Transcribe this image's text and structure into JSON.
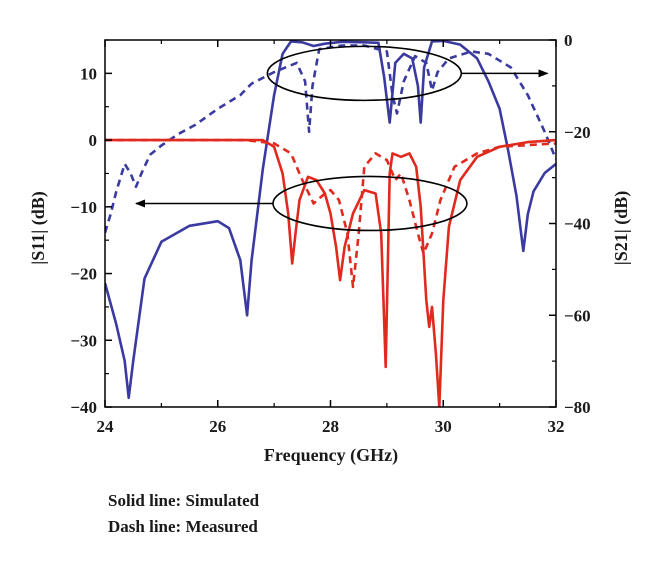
{
  "chart_data": {
    "type": "line",
    "xlabel": "Frequency (GHz)",
    "ylabel_left": "|S11| (dB)",
    "ylabel_right": "|S21| (dB)",
    "xlim": [
      24,
      32
    ],
    "ylim_left": [
      -40,
      15
    ],
    "ylim_right": [
      -80,
      0
    ],
    "x_ticks": [
      "24",
      "26",
      "28",
      "30",
      "32"
    ],
    "y_left_ticks": [
      "10",
      "0",
      "−10",
      "−20",
      "−30",
      "−40"
    ],
    "y_right_ticks": [
      "0",
      "−20",
      "−40",
      "−60",
      "−80"
    ],
    "grid": false,
    "series": [
      {
        "axis": "right",
        "style": "solid",
        "color": "#3a3aa0",
        "points": [
          [
            24,
            -53
          ],
          [
            24.2,
            -62
          ],
          [
            24.35,
            -70
          ],
          [
            24.42,
            -78
          ],
          [
            24.5,
            -70
          ],
          [
            24.7,
            -52
          ],
          [
            25,
            -44
          ],
          [
            25.5,
            -40.5
          ],
          [
            26,
            -39.5
          ],
          [
            26.2,
            -41
          ],
          [
            26.4,
            -48
          ],
          [
            26.52,
            -60
          ],
          [
            26.6,
            -48
          ],
          [
            26.8,
            -28
          ],
          [
            27,
            -12
          ],
          [
            27.15,
            -3
          ],
          [
            27.3,
            -0.3
          ],
          [
            27.5,
            -0.5
          ],
          [
            27.7,
            -1.3
          ],
          [
            27.9,
            -0.8
          ],
          [
            28.2,
            -0.4
          ],
          [
            28.6,
            -0.5
          ],
          [
            28.85,
            -0.6
          ],
          [
            28.95,
            -8
          ],
          [
            29.05,
            -18
          ],
          [
            29.15,
            -5
          ],
          [
            29.3,
            -3
          ],
          [
            29.45,
            -4
          ],
          [
            29.55,
            -10
          ],
          [
            29.6,
            -18
          ],
          [
            29.66,
            -6
          ],
          [
            29.8,
            -0.3
          ],
          [
            30,
            -0.2
          ],
          [
            30.3,
            -1
          ],
          [
            30.6,
            -4
          ],
          [
            30.8,
            -9
          ],
          [
            31,
            -15
          ],
          [
            31.15,
            -24
          ],
          [
            31.3,
            -34
          ],
          [
            31.42,
            -46
          ],
          [
            31.5,
            -38
          ],
          [
            31.6,
            -33
          ],
          [
            31.8,
            -29
          ],
          [
            32,
            -27
          ]
        ]
      },
      {
        "axis": "right",
        "style": "dashed",
        "color": "#3a3aa0",
        "points": [
          [
            24,
            -42
          ],
          [
            24.1,
            -38
          ],
          [
            24.2,
            -33
          ],
          [
            24.35,
            -27
          ],
          [
            24.45,
            -29
          ],
          [
            24.55,
            -32
          ],
          [
            24.65,
            -29
          ],
          [
            24.8,
            -25
          ],
          [
            25,
            -23
          ],
          [
            25.3,
            -20.5
          ],
          [
            25.6,
            -18.5
          ],
          [
            26,
            -15
          ],
          [
            26.4,
            -12
          ],
          [
            26.6,
            -9.5
          ],
          [
            27,
            -7
          ],
          [
            27.4,
            -5
          ],
          [
            27.55,
            -9
          ],
          [
            27.62,
            -20
          ],
          [
            27.68,
            -10
          ],
          [
            27.8,
            -2
          ],
          [
            28.2,
            -1.2
          ],
          [
            28.6,
            -1.2
          ],
          [
            29,
            -2.5
          ],
          [
            29.1,
            -12
          ],
          [
            29.18,
            -16
          ],
          [
            29.3,
            -9
          ],
          [
            29.5,
            -3.5
          ],
          [
            29.7,
            -5
          ],
          [
            29.8,
            -11
          ],
          [
            29.9,
            -7
          ],
          [
            30.1,
            -4
          ],
          [
            30.5,
            -2.5
          ],
          [
            30.8,
            -3
          ],
          [
            31.2,
            -6
          ],
          [
            31.5,
            -12
          ],
          [
            31.8,
            -20
          ],
          [
            32,
            -26
          ]
        ]
      },
      {
        "axis": "left",
        "style": "solid",
        "color": "#e02a1e",
        "points": [
          [
            24,
            0
          ],
          [
            26,
            0
          ],
          [
            26.8,
            0
          ],
          [
            27,
            -1
          ],
          [
            27.15,
            -5
          ],
          [
            27.25,
            -11
          ],
          [
            27.32,
            -18.5
          ],
          [
            27.38,
            -14
          ],
          [
            27.45,
            -9
          ],
          [
            27.6,
            -5.5
          ],
          [
            27.75,
            -6
          ],
          [
            27.9,
            -8
          ],
          [
            28,
            -11
          ],
          [
            28.1,
            -16
          ],
          [
            28.17,
            -21
          ],
          [
            28.25,
            -16
          ],
          [
            28.4,
            -11
          ],
          [
            28.6,
            -7.5
          ],
          [
            28.8,
            -8
          ],
          [
            28.9,
            -14
          ],
          [
            28.98,
            -34
          ],
          [
            29.05,
            -5
          ],
          [
            29.1,
            -2
          ],
          [
            29.25,
            -2.5
          ],
          [
            29.4,
            -2
          ],
          [
            29.52,
            -4
          ],
          [
            29.6,
            -10
          ],
          [
            29.7,
            -24
          ],
          [
            29.75,
            -28
          ],
          [
            29.8,
            -25
          ],
          [
            29.87,
            -32
          ],
          [
            29.93,
            -40
          ],
          [
            30.0,
            -24
          ],
          [
            30.1,
            -13
          ],
          [
            30.3,
            -6
          ],
          [
            30.6,
            -2.5
          ],
          [
            31,
            -1
          ],
          [
            31.5,
            -0.3
          ],
          [
            32,
            0
          ]
        ]
      },
      {
        "axis": "left",
        "style": "dashed",
        "color": "#e02a1e",
        "points": [
          [
            24,
            0
          ],
          [
            26.5,
            0
          ],
          [
            27,
            -0.5
          ],
          [
            27.3,
            -2
          ],
          [
            27.5,
            -6
          ],
          [
            27.7,
            -9.5
          ],
          [
            27.9,
            -8
          ],
          [
            28,
            -7.5
          ],
          [
            28.15,
            -9
          ],
          [
            28.3,
            -14
          ],
          [
            28.4,
            -22
          ],
          [
            28.5,
            -14
          ],
          [
            28.6,
            -4
          ],
          [
            28.8,
            -2
          ],
          [
            29,
            -3
          ],
          [
            29.15,
            -6
          ],
          [
            29.25,
            -5
          ],
          [
            29.4,
            -9
          ],
          [
            29.55,
            -14
          ],
          [
            29.65,
            -17
          ],
          [
            29.8,
            -14
          ],
          [
            29.95,
            -9
          ],
          [
            30.2,
            -4
          ],
          [
            30.6,
            -2
          ],
          [
            31,
            -1
          ],
          [
            32,
            -0.5
          ]
        ]
      }
    ],
    "annotations": [
      {
        "shape": "ellipse",
        "center": [
          28.6,
          10
        ],
        "axis": "left",
        "arrow_to": [
          31.85,
          10
        ]
      },
      {
        "shape": "ellipse",
        "center": [
          28.7,
          -9.5
        ],
        "axis": "left",
        "arrow_to": [
          24.55,
          -9.5
        ]
      }
    ]
  },
  "legend_notes": {
    "solid": "Solid line: Simulated",
    "dash": "Dash line: Measured"
  }
}
